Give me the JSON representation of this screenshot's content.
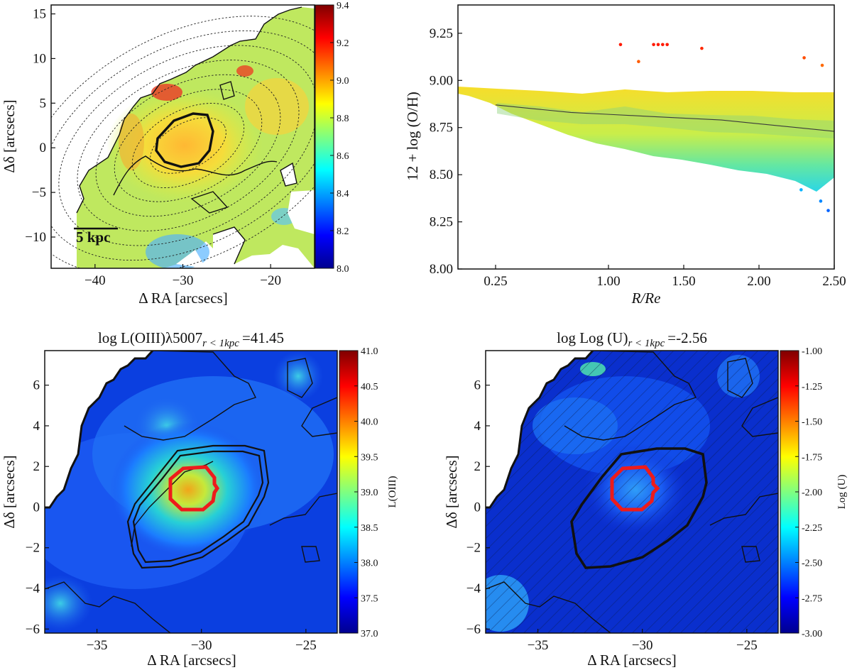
{
  "chart_data": [
    {
      "type": "heatmap",
      "panel": "top-left",
      "xlabel": "Δ RA [arcsecs]",
      "ylabel": "Δδ [arcsecs]",
      "xlim": [
        -45,
        -15
      ],
      "ylim": [
        -13.5,
        16
      ],
      "xticks": [
        -40,
        -30,
        -20
      ],
      "yticks": [
        -10,
        -5,
        0,
        5,
        10,
        15
      ],
      "scalebar_label": "5 kpc",
      "colorbar": {
        "min": 8.0,
        "max": 9.4,
        "ticks": [
          8.0,
          8.2,
          8.4,
          8.6,
          8.8,
          9.0,
          9.2,
          9.4
        ]
      },
      "peak_center": [
        -30,
        0.5
      ]
    },
    {
      "type": "scatter",
      "panel": "top-right",
      "xlabel": "R/Re",
      "ylabel": "12 + log (O/H)",
      "xlim": [
        0.0,
        2.5
      ],
      "ylim": [
        8.0,
        9.4
      ],
      "xticks": [
        0.25,
        1.0,
        1.5,
        2.0,
        2.5
      ],
      "xtick_labels": [
        "0.25",
        "1.00",
        "1.50",
        "2.00",
        "2.50"
      ],
      "yticks": [
        8.0,
        8.25,
        8.5,
        8.75,
        9.0,
        9.25
      ],
      "ytick_labels": [
        "8.00",
        "8.25",
        "8.50",
        "8.75",
        "9.00",
        "9.25"
      ],
      "trend_line": {
        "x": [
          0.25,
          0.5,
          0.75,
          1.0,
          1.25,
          1.5,
          1.75,
          2.0,
          2.25,
          2.5
        ],
        "y": [
          8.87,
          8.85,
          8.83,
          8.82,
          8.81,
          8.8,
          8.79,
          8.77,
          8.75,
          8.73
        ]
      },
      "outliers": [
        {
          "x": 1.08,
          "y": 9.19
        },
        {
          "x": 1.3,
          "y": 9.19
        },
        {
          "x": 1.33,
          "y": 9.19
        },
        {
          "x": 1.36,
          "y": 9.19
        },
        {
          "x": 1.39,
          "y": 9.19
        },
        {
          "x": 1.62,
          "y": 9.17
        },
        {
          "x": 1.2,
          "y": 9.1
        },
        {
          "x": 2.3,
          "y": 9.12
        },
        {
          "x": 2.42,
          "y": 9.08
        },
        {
          "x": 2.46,
          "y": 8.31
        },
        {
          "x": 2.41,
          "y": 8.36
        },
        {
          "x": 2.28,
          "y": 8.42
        }
      ]
    },
    {
      "type": "heatmap",
      "panel": "bottom-left",
      "title": "log  L(OIII)λ5007",
      "title_sub": "r < 1kpc",
      "title_value": "=41.45",
      "xlabel": "Δ RA [arcsecs]",
      "ylabel": "Δδ [arcsecs]",
      "xlim": [
        -37.5,
        -23.5
      ],
      "ylim": [
        -6.2,
        7.7
      ],
      "xticks": [
        -35,
        -30,
        -25
      ],
      "yticks": [
        -6,
        -4,
        -2,
        0,
        2,
        4,
        6
      ],
      "colorbar": {
        "label": "L(OIII)",
        "min": 37.0,
        "max": 41.0,
        "ticks": [
          37.0,
          37.5,
          38.0,
          38.5,
          39.0,
          39.5,
          40.0,
          40.5,
          41.0
        ]
      }
    },
    {
      "type": "heatmap",
      "panel": "bottom-right",
      "title": "log  Log (U)",
      "title_sub": "r < 1kpc",
      "title_value": "=-2.56",
      "xlabel": "Δ RA [arcsecs]",
      "ylabel": "Δδ [arcsecs]",
      "xlim": [
        -37.5,
        -23.5
      ],
      "ylim": [
        -6.2,
        7.7
      ],
      "xticks": [
        -35,
        -30,
        -25
      ],
      "yticks": [
        -6,
        -4,
        -2,
        0,
        2,
        4,
        6
      ],
      "colorbar": {
        "label": "Log (U)",
        "min": -3.0,
        "max": -1.0,
        "ticks": [
          -3.0,
          -2.75,
          -2.5,
          -2.25,
          -2.0,
          -1.75,
          -1.5,
          -1.25,
          -1.0
        ],
        "tick_labels": [
          "-3.00",
          "-2.75",
          "-2.50",
          "-2.25",
          "-2.00",
          "-1.75",
          "-1.50",
          "-1.25",
          "-1.00"
        ]
      }
    }
  ]
}
